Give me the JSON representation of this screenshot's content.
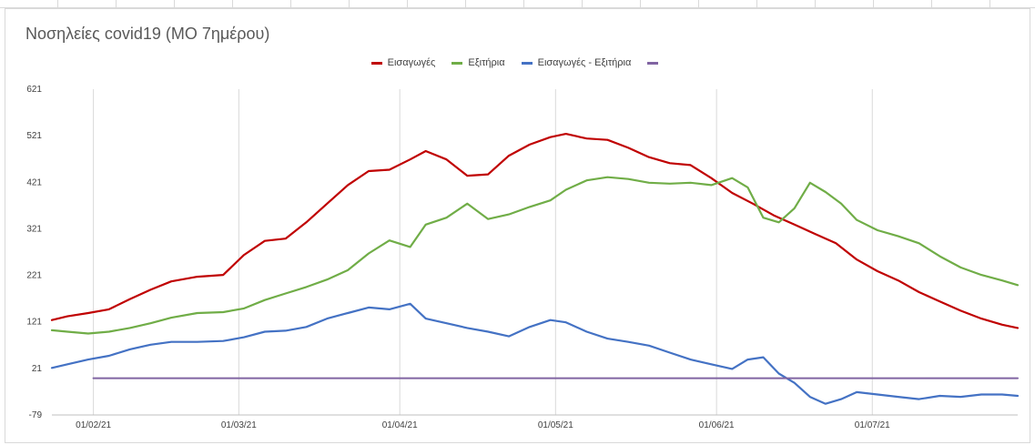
{
  "chart_data": {
    "type": "line",
    "title": "Νοσηλείες covid19 (ΜΟ 7ημέρου)",
    "xlabel": "",
    "ylabel": "",
    "x_range": [
      "2021-01-24",
      "2021-07-29"
    ],
    "ylim": [
      -79,
      621
    ],
    "y_ticks": [
      621,
      521,
      421,
      321,
      221,
      121,
      21,
      -79
    ],
    "x_ticks": [
      {
        "date": "2021-02-01",
        "label": "01/02/21"
      },
      {
        "date": "2021-03-01",
        "label": "01/03/21"
      },
      {
        "date": "2021-04-01",
        "label": "01/04/21"
      },
      {
        "date": "2021-05-01",
        "label": "01/05/21"
      },
      {
        "date": "2021-06-01",
        "label": "01/06/21"
      },
      {
        "date": "2021-07-01",
        "label": "01/07/21"
      }
    ],
    "grid": "vertical",
    "legend_position": "top",
    "series": [
      {
        "name": "Εισαγωγές",
        "color": "#C00000",
        "points": [
          [
            "2021-01-24",
            125
          ],
          [
            "2021-01-27",
            133
          ],
          [
            "2021-01-31",
            140
          ],
          [
            "2021-02-04",
            148
          ],
          [
            "2021-02-08",
            170
          ],
          [
            "2021-02-12",
            190
          ],
          [
            "2021-02-16",
            208
          ],
          [
            "2021-02-21",
            218
          ],
          [
            "2021-02-26",
            222
          ],
          [
            "2021-03-02",
            265
          ],
          [
            "2021-03-06",
            295
          ],
          [
            "2021-03-10",
            300
          ],
          [
            "2021-03-14",
            335
          ],
          [
            "2021-03-18",
            375
          ],
          [
            "2021-03-22",
            415
          ],
          [
            "2021-03-26",
            445
          ],
          [
            "2021-03-30",
            448
          ],
          [
            "2021-04-03",
            470
          ],
          [
            "2021-04-06",
            488
          ],
          [
            "2021-04-10",
            470
          ],
          [
            "2021-04-14",
            435
          ],
          [
            "2021-04-18",
            438
          ],
          [
            "2021-04-22",
            478
          ],
          [
            "2021-04-26",
            502
          ],
          [
            "2021-04-30",
            518
          ],
          [
            "2021-05-03",
            525
          ],
          [
            "2021-05-07",
            515
          ],
          [
            "2021-05-11",
            512
          ],
          [
            "2021-05-15",
            495
          ],
          [
            "2021-05-19",
            475
          ],
          [
            "2021-05-23",
            462
          ],
          [
            "2021-05-27",
            458
          ],
          [
            "2021-05-31",
            430
          ],
          [
            "2021-06-04",
            398
          ],
          [
            "2021-06-08",
            375
          ],
          [
            "2021-06-12",
            350
          ],
          [
            "2021-06-16",
            330
          ],
          [
            "2021-06-20",
            310
          ],
          [
            "2021-06-24",
            290
          ],
          [
            "2021-06-28",
            255
          ],
          [
            "2021-07-02",
            230
          ],
          [
            "2021-07-06",
            210
          ],
          [
            "2021-07-10",
            185
          ],
          [
            "2021-07-14",
            165
          ],
          [
            "2021-07-18",
            145
          ],
          [
            "2021-07-22",
            128
          ],
          [
            "2021-07-26",
            115
          ],
          [
            "2021-07-29",
            108
          ]
        ]
      },
      {
        "name": "Εξιτήρια",
        "color": "#70AD47",
        "points": [
          [
            "2021-01-24",
            103
          ],
          [
            "2021-01-27",
            100
          ],
          [
            "2021-01-31",
            96
          ],
          [
            "2021-02-04",
            100
          ],
          [
            "2021-02-08",
            108
          ],
          [
            "2021-02-12",
            118
          ],
          [
            "2021-02-16",
            130
          ],
          [
            "2021-02-21",
            140
          ],
          [
            "2021-02-26",
            142
          ],
          [
            "2021-03-02",
            150
          ],
          [
            "2021-03-06",
            168
          ],
          [
            "2021-03-10",
            182
          ],
          [
            "2021-03-14",
            196
          ],
          [
            "2021-03-18",
            212
          ],
          [
            "2021-03-22",
            232
          ],
          [
            "2021-03-26",
            268
          ],
          [
            "2021-03-30",
            296
          ],
          [
            "2021-04-03",
            282
          ],
          [
            "2021-04-06",
            330
          ],
          [
            "2021-04-10",
            345
          ],
          [
            "2021-04-14",
            375
          ],
          [
            "2021-04-18",
            342
          ],
          [
            "2021-04-22",
            352
          ],
          [
            "2021-04-26",
            368
          ],
          [
            "2021-04-30",
            382
          ],
          [
            "2021-05-03",
            405
          ],
          [
            "2021-05-07",
            425
          ],
          [
            "2021-05-11",
            432
          ],
          [
            "2021-05-15",
            428
          ],
          [
            "2021-05-19",
            420
          ],
          [
            "2021-05-23",
            418
          ],
          [
            "2021-05-27",
            420
          ],
          [
            "2021-05-31",
            415
          ],
          [
            "2021-06-04",
            430
          ],
          [
            "2021-06-07",
            410
          ],
          [
            "2021-06-10",
            345
          ],
          [
            "2021-06-13",
            335
          ],
          [
            "2021-06-16",
            365
          ],
          [
            "2021-06-19",
            420
          ],
          [
            "2021-06-22",
            400
          ],
          [
            "2021-06-25",
            375
          ],
          [
            "2021-06-28",
            340
          ],
          [
            "2021-07-02",
            318
          ],
          [
            "2021-07-06",
            305
          ],
          [
            "2021-07-10",
            290
          ],
          [
            "2021-07-14",
            262
          ],
          [
            "2021-07-18",
            238
          ],
          [
            "2021-07-22",
            222
          ],
          [
            "2021-07-26",
            210
          ],
          [
            "2021-07-29",
            200
          ]
        ]
      },
      {
        "name": "Εισαγωγές - Εξιτήρια",
        "color": "#4472C4",
        "points": [
          [
            "2021-01-24",
            22
          ],
          [
            "2021-01-27",
            30
          ],
          [
            "2021-01-31",
            40
          ],
          [
            "2021-02-04",
            48
          ],
          [
            "2021-02-08",
            62
          ],
          [
            "2021-02-12",
            72
          ],
          [
            "2021-02-16",
            78
          ],
          [
            "2021-02-21",
            78
          ],
          [
            "2021-02-26",
            80
          ],
          [
            "2021-03-02",
            88
          ],
          [
            "2021-03-06",
            100
          ],
          [
            "2021-03-10",
            102
          ],
          [
            "2021-03-14",
            110
          ],
          [
            "2021-03-18",
            128
          ],
          [
            "2021-03-22",
            140
          ],
          [
            "2021-03-26",
            152
          ],
          [
            "2021-03-30",
            148
          ],
          [
            "2021-04-03",
            160
          ],
          [
            "2021-04-06",
            128
          ],
          [
            "2021-04-10",
            118
          ],
          [
            "2021-04-14",
            108
          ],
          [
            "2021-04-18",
            100
          ],
          [
            "2021-04-22",
            90
          ],
          [
            "2021-04-26",
            110
          ],
          [
            "2021-04-30",
            125
          ],
          [
            "2021-05-03",
            120
          ],
          [
            "2021-05-07",
            100
          ],
          [
            "2021-05-11",
            85
          ],
          [
            "2021-05-15",
            78
          ],
          [
            "2021-05-19",
            70
          ],
          [
            "2021-05-23",
            55
          ],
          [
            "2021-05-27",
            40
          ],
          [
            "2021-05-31",
            30
          ],
          [
            "2021-06-04",
            20
          ],
          [
            "2021-06-07",
            40
          ],
          [
            "2021-06-10",
            45
          ],
          [
            "2021-06-13",
            10
          ],
          [
            "2021-06-16",
            -10
          ],
          [
            "2021-06-19",
            -40
          ],
          [
            "2021-06-22",
            -55
          ],
          [
            "2021-06-25",
            -45
          ],
          [
            "2021-06-28",
            -30
          ],
          [
            "2021-07-02",
            -35
          ],
          [
            "2021-07-06",
            -40
          ],
          [
            "2021-07-10",
            -45
          ],
          [
            "2021-07-14",
            -38
          ],
          [
            "2021-07-18",
            -40
          ],
          [
            "2021-07-22",
            -35
          ],
          [
            "2021-07-26",
            -35
          ],
          [
            "2021-07-29",
            -38
          ]
        ]
      },
      {
        "name": "",
        "color": "#8064A2",
        "points": [
          [
            "2021-02-01",
            0
          ],
          [
            "2021-07-29",
            0
          ]
        ]
      }
    ]
  }
}
